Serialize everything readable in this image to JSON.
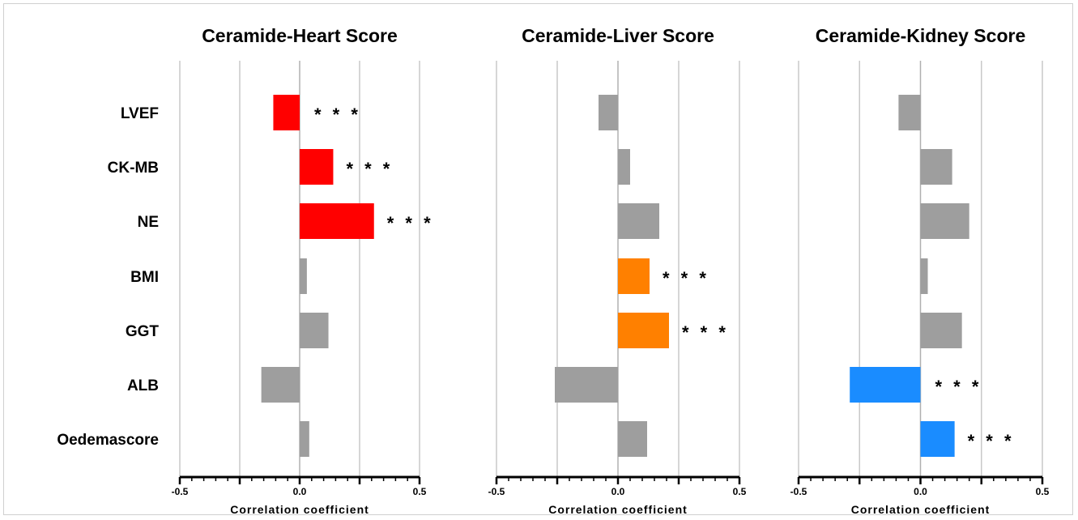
{
  "chart_data": [
    {
      "type": "bar",
      "orientation": "horizontal",
      "title": "Ceramide-Heart Score",
      "xlabel": "Correlation coefficient",
      "xlim": [
        -0.5,
        0.5
      ],
      "xticks": [
        "-0.5",
        "0.0",
        "0.5"
      ],
      "grid": true,
      "categories": [
        "LVEF",
        "CK-MB",
        "NE",
        "BMI",
        "GGT",
        "ALB",
        "Oedemascore"
      ],
      "values": [
        -0.11,
        0.14,
        0.31,
        0.03,
        0.12,
        -0.16,
        0.04
      ],
      "significance": [
        "* * *",
        "* * *",
        "* * *",
        "",
        "",
        "",
        ""
      ],
      "colors": [
        "#ff0000",
        "#ff0000",
        "#ff0000",
        "#9e9e9e",
        "#9e9e9e",
        "#9e9e9e",
        "#9e9e9e"
      ]
    },
    {
      "type": "bar",
      "orientation": "horizontal",
      "title": "Ceramide-Liver Score",
      "xlabel": "Correlation coefficient",
      "xlim": [
        -0.5,
        0.5
      ],
      "xticks": [
        "-0.5",
        "0.0",
        "0.5"
      ],
      "grid": true,
      "categories": [
        "LVEF",
        "CK-MB",
        "NE",
        "BMI",
        "GGT",
        "ALB",
        "Oedemascore"
      ],
      "values": [
        -0.08,
        0.05,
        0.17,
        0.13,
        0.21,
        -0.26,
        0.12
      ],
      "significance": [
        "",
        "",
        "",
        "* * *",
        "* * *",
        "",
        ""
      ],
      "colors": [
        "#9e9e9e",
        "#9e9e9e",
        "#9e9e9e",
        "#ff8000",
        "#ff8000",
        "#9e9e9e",
        "#9e9e9e"
      ]
    },
    {
      "type": "bar",
      "orientation": "horizontal",
      "title": "Ceramide-Kidney Score",
      "xlabel": "Correlation coefficient",
      "xlim": [
        -0.5,
        0.5
      ],
      "xticks": [
        "-0.5",
        "0.0",
        "0.5"
      ],
      "grid": true,
      "categories": [
        "LVEF",
        "CK-MB",
        "NE",
        "BMI",
        "GGT",
        "ALB",
        "Oedemascore"
      ],
      "values": [
        -0.09,
        0.13,
        0.2,
        0.03,
        0.17,
        -0.29,
        0.14
      ],
      "significance": [
        "",
        "",
        "",
        "",
        "",
        "* * *",
        "* * *"
      ],
      "colors": [
        "#9e9e9e",
        "#9e9e9e",
        "#9e9e9e",
        "#9e9e9e",
        "#9e9e9e",
        "#1a8cff",
        "#1a8cff"
      ]
    }
  ]
}
